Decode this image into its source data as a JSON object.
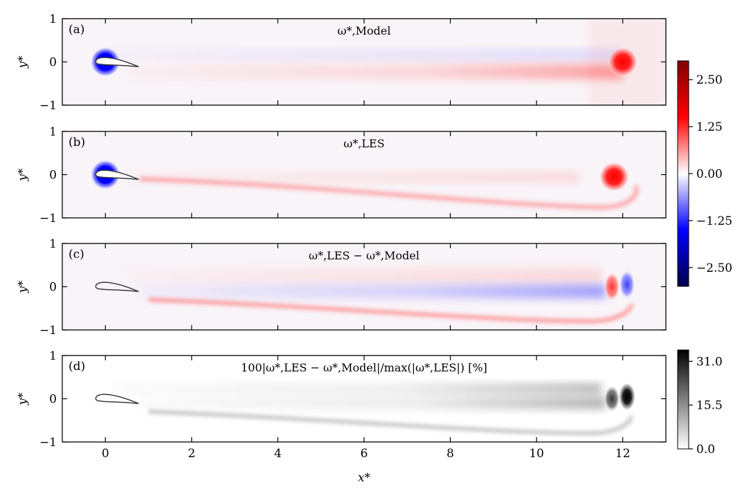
{
  "chart_data": [
    {
      "type": "heatmap",
      "panel_label": "(a)",
      "title": "ω*,Model",
      "xlabel": "",
      "ylabel": "y*",
      "xlim": [
        -1,
        13
      ],
      "ylim": [
        -1,
        1
      ],
      "xticks": [
        "0",
        "2",
        "4",
        "6",
        "8",
        "10",
        "12"
      ],
      "yticks": [
        "1",
        "0",
        "−1"
      ],
      "colormap": "seismic",
      "vortices": [
        {
          "x": 0.0,
          "y": 0.0,
          "value": -3.0
        },
        {
          "x": 12.0,
          "y": 0.0,
          "value": 2.6
        }
      ]
    },
    {
      "type": "heatmap",
      "panel_label": "(b)",
      "title": "ω*,LES",
      "xlabel": "",
      "ylabel": "y*",
      "xlim": [
        -1,
        13
      ],
      "ylim": [
        -1,
        1
      ],
      "xticks": [
        "0",
        "2",
        "4",
        "6",
        "8",
        "10",
        "12"
      ],
      "yticks": [
        "1",
        "0",
        "−1"
      ],
      "colormap": "seismic",
      "vortices": [
        {
          "x": 0.0,
          "y": 0.0,
          "value": -3.0
        },
        {
          "x": 11.8,
          "y": -0.05,
          "value": 2.6
        }
      ]
    },
    {
      "type": "heatmap",
      "panel_label": "(c)",
      "title": "ω*,LES − ω*,Model",
      "xlabel": "",
      "ylabel": "y*",
      "xlim": [
        -1,
        13
      ],
      "ylim": [
        -1,
        1
      ],
      "xticks": [
        "0",
        "2",
        "4",
        "6",
        "8",
        "10",
        "12"
      ],
      "yticks": [
        "1",
        "0",
        "−1"
      ],
      "colormap": "seismic",
      "vortices": [
        {
          "x": 11.75,
          "y": 0.0,
          "value": 2.0
        },
        {
          "x": 12.1,
          "y": 0.05,
          "value": -2.0
        }
      ]
    },
    {
      "type": "heatmap",
      "panel_label": "(d)",
      "title": "100|ω*,LES − ω*,Model|/max(|ω*,LES|) [%]",
      "xlabel": "x*",
      "ylabel": "y*",
      "xlim": [
        -1,
        13
      ],
      "ylim": [
        -1,
        1
      ],
      "xticks": [
        "0",
        "2",
        "4",
        "6",
        "8",
        "10",
        "12"
      ],
      "yticks": [
        "1",
        "0",
        "−1"
      ],
      "colormap": "gray_r",
      "vortices": [
        {
          "x": 11.75,
          "y": 0.0,
          "value": 24.0
        },
        {
          "x": 12.1,
          "y": 0.05,
          "value": 31.0
        }
      ]
    }
  ],
  "colorbars": [
    {
      "name": "vorticity",
      "ticks": [
        "2.50",
        "1.25",
        "0.00",
        "−1.25",
        "−2.50"
      ],
      "tick_values": [
        2.5,
        1.25,
        0,
        -1.25,
        -2.5
      ],
      "range": [
        -3.0,
        3.0
      ]
    },
    {
      "name": "error",
      "ticks": [
        "31.0",
        "15.5",
        "0.0"
      ],
      "tick_values": [
        31.0,
        15.5,
        0.0
      ],
      "range": [
        0,
        35
      ]
    }
  ],
  "colors": {
    "red": "#ff0000",
    "blue": "#0000ff",
    "dark_red": "#800000",
    "dark_blue": "#00004c",
    "black": "#000000"
  }
}
